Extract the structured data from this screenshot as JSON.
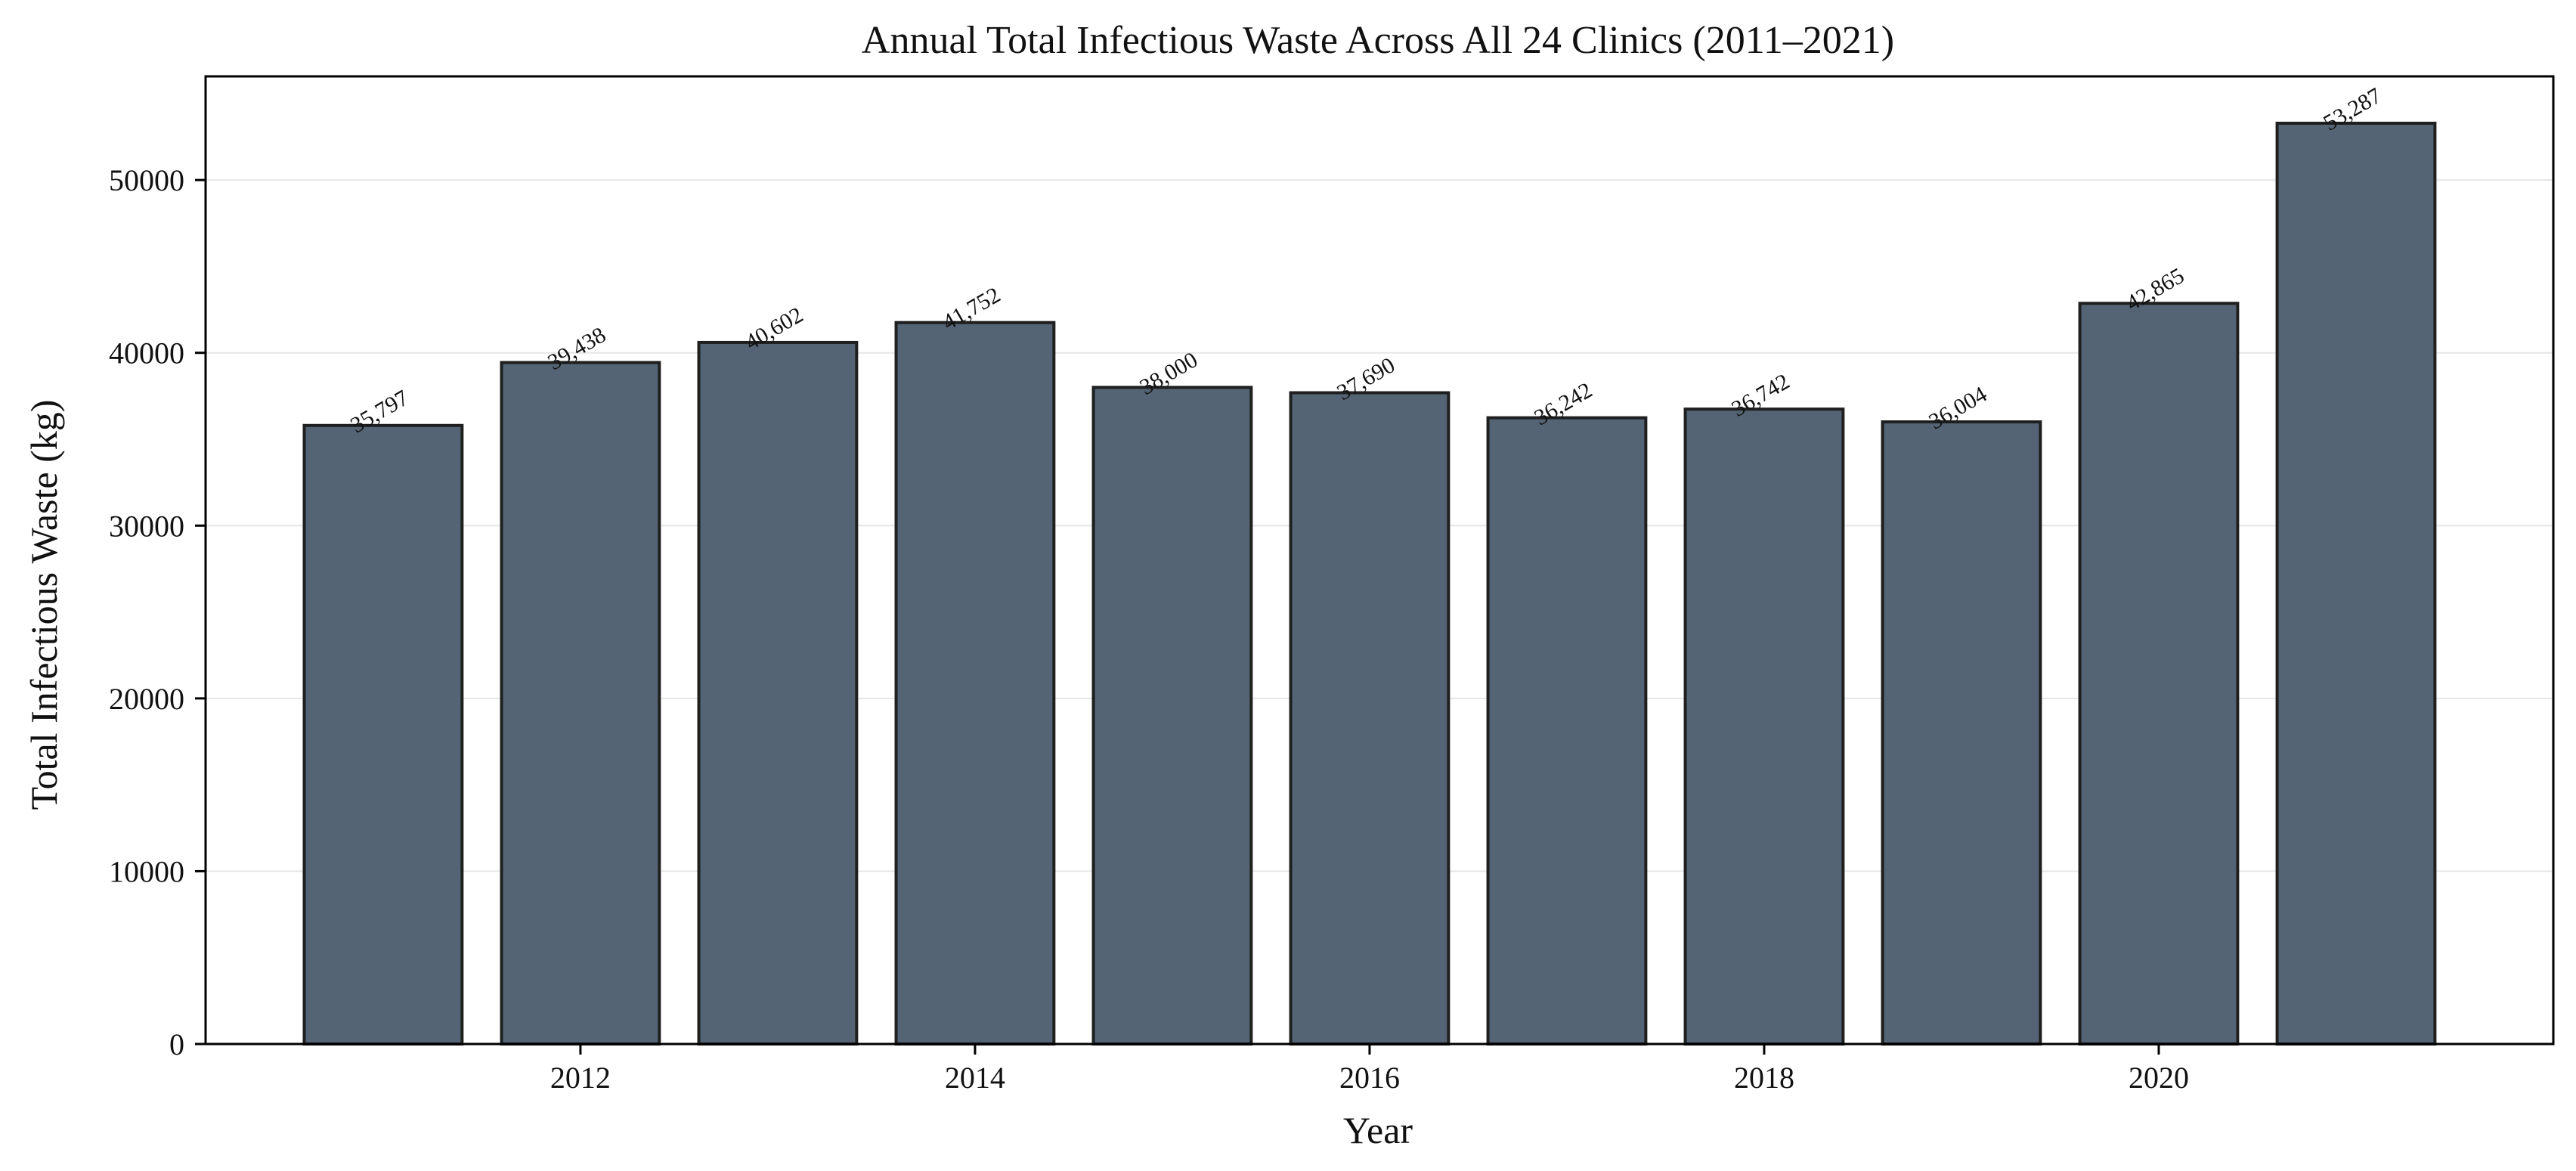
{
  "chart_data": {
    "type": "bar",
    "title": "Annual Total Infectious Waste Across All 24 Clinics (2011–2021)",
    "xlabel": "Year",
    "ylabel": "Total Infectious Waste (kg)",
    "x": [
      2011,
      2012,
      2013,
      2014,
      2015,
      2016,
      2017,
      2018,
      2019,
      2020,
      2021
    ],
    "values": [
      35797,
      39438,
      40602,
      41752,
      38000,
      37690,
      36242,
      36742,
      36004,
      42865,
      53287
    ],
    "value_labels": [
      "35,797",
      "39,438",
      "40,602",
      "41,752",
      "38,000",
      "37,690",
      "36,242",
      "36,742",
      "36,004",
      "42,865",
      "53,287"
    ],
    "xlim": [
      2010.1,
      2022.0
    ],
    "ylim": [
      0,
      56000
    ],
    "xticks": [
      2012,
      2014,
      2016,
      2018,
      2020
    ],
    "xtick_labels": [
      "2012",
      "2014",
      "2016",
      "2018",
      "2020"
    ],
    "yticks": [
      0,
      10000,
      20000,
      30000,
      40000,
      50000
    ],
    "ytick_labels": [
      "0",
      "10000",
      "20000",
      "30000",
      "40000",
      "50000"
    ],
    "grid": "y",
    "bar_width_years": 0.8,
    "colors": {
      "bar_fill": "#546474",
      "bar_edge": "#1f1f1f",
      "grid": "#e6e6e6",
      "axis": "#000000"
    }
  }
}
